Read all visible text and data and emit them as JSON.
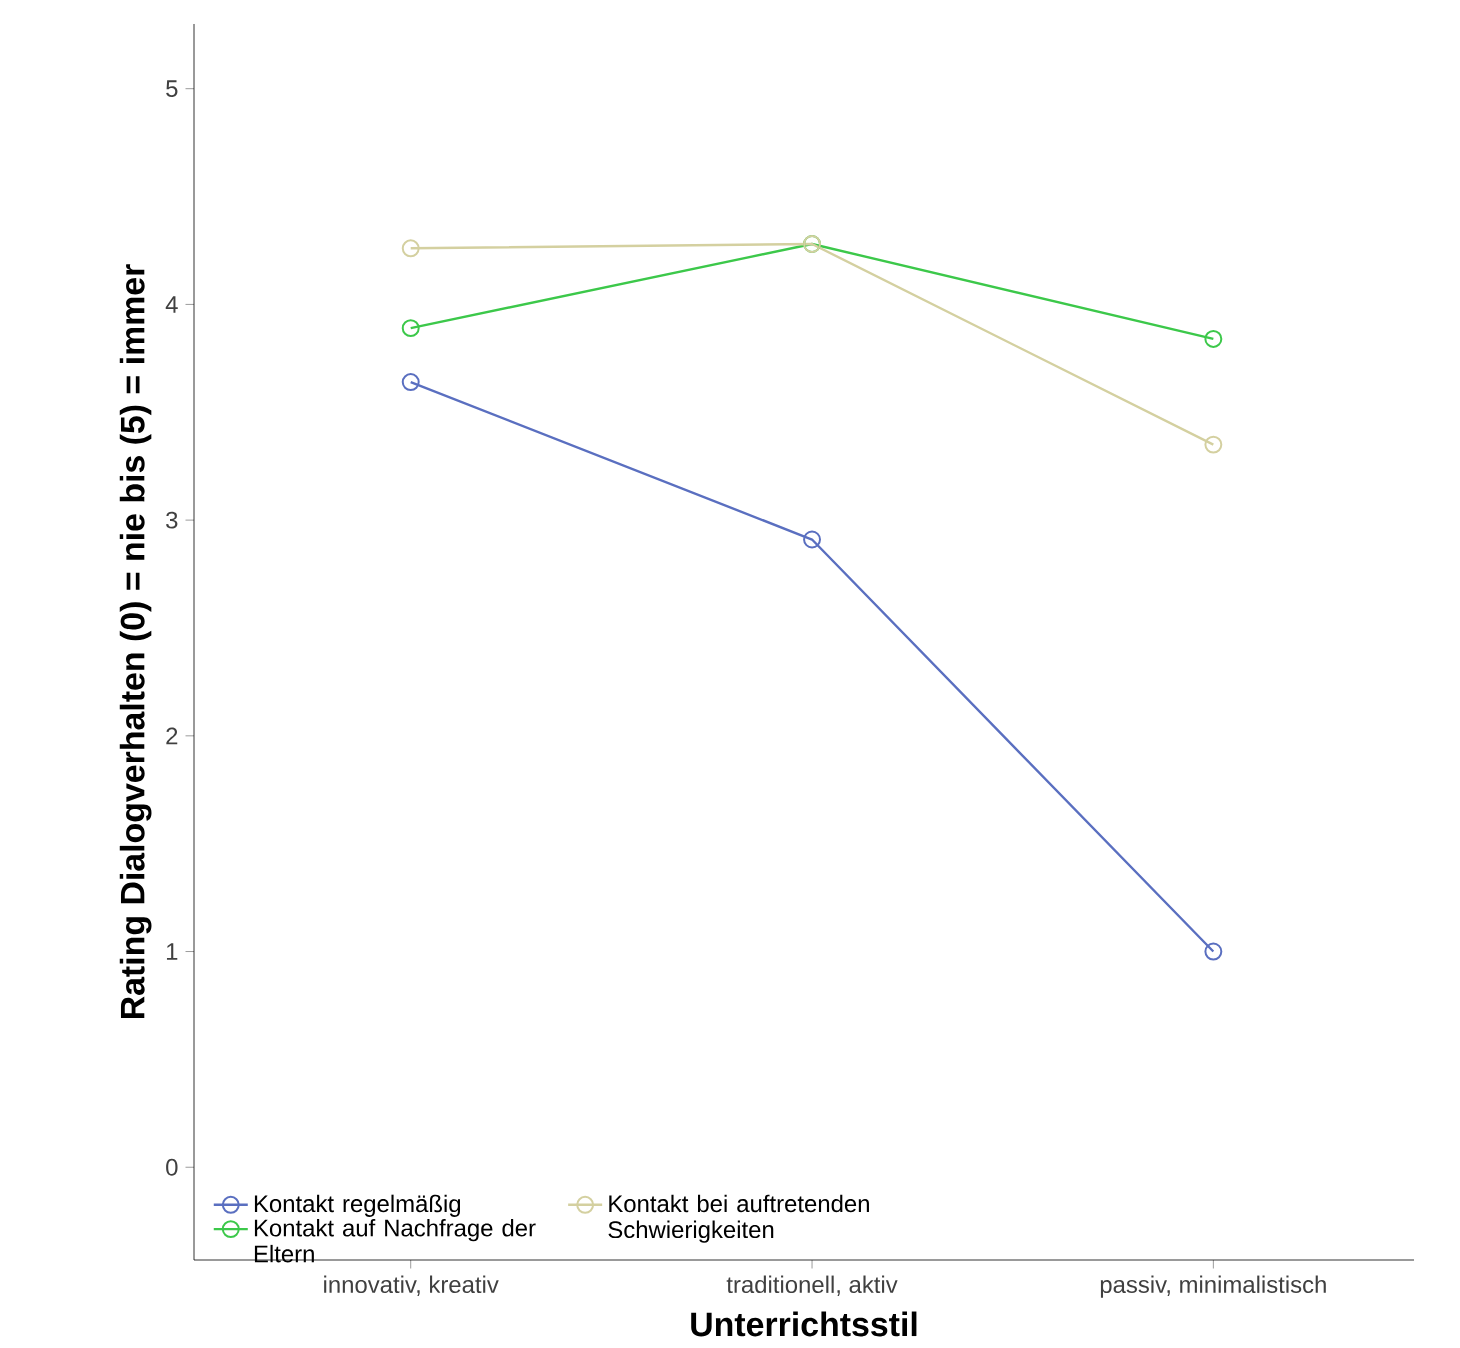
{
  "chart_data": {
    "type": "line",
    "xlabel": "Unterrichtsstil",
    "ylabel": "Rating Dialogverhalten (0) = nie bis (5) = immer",
    "categories": [
      "innovativ, kreativ",
      "traditionell, aktiv",
      "passiv, minimalistisch"
    ],
    "ylim": [
      -0.43,
      5.3
    ],
    "yticks": [
      0,
      1,
      2,
      3,
      4,
      5
    ],
    "series": [
      {
        "name": "Kontakt regelmäßig",
        "color": "#5a6fc0",
        "values": [
          3.64,
          2.91,
          1.0
        ]
      },
      {
        "name": "Kontakt auf Nachfrage der Eltern",
        "color": "#3cc84a",
        "values": [
          3.89,
          4.28,
          3.84
        ]
      },
      {
        "name": "Kontakt bei auftretenden Schwierigkeiten",
        "color": "#d4d0a0",
        "values": [
          4.26,
          4.28,
          3.35
        ]
      }
    ],
    "marker": "circle",
    "legend": "bottom left"
  }
}
